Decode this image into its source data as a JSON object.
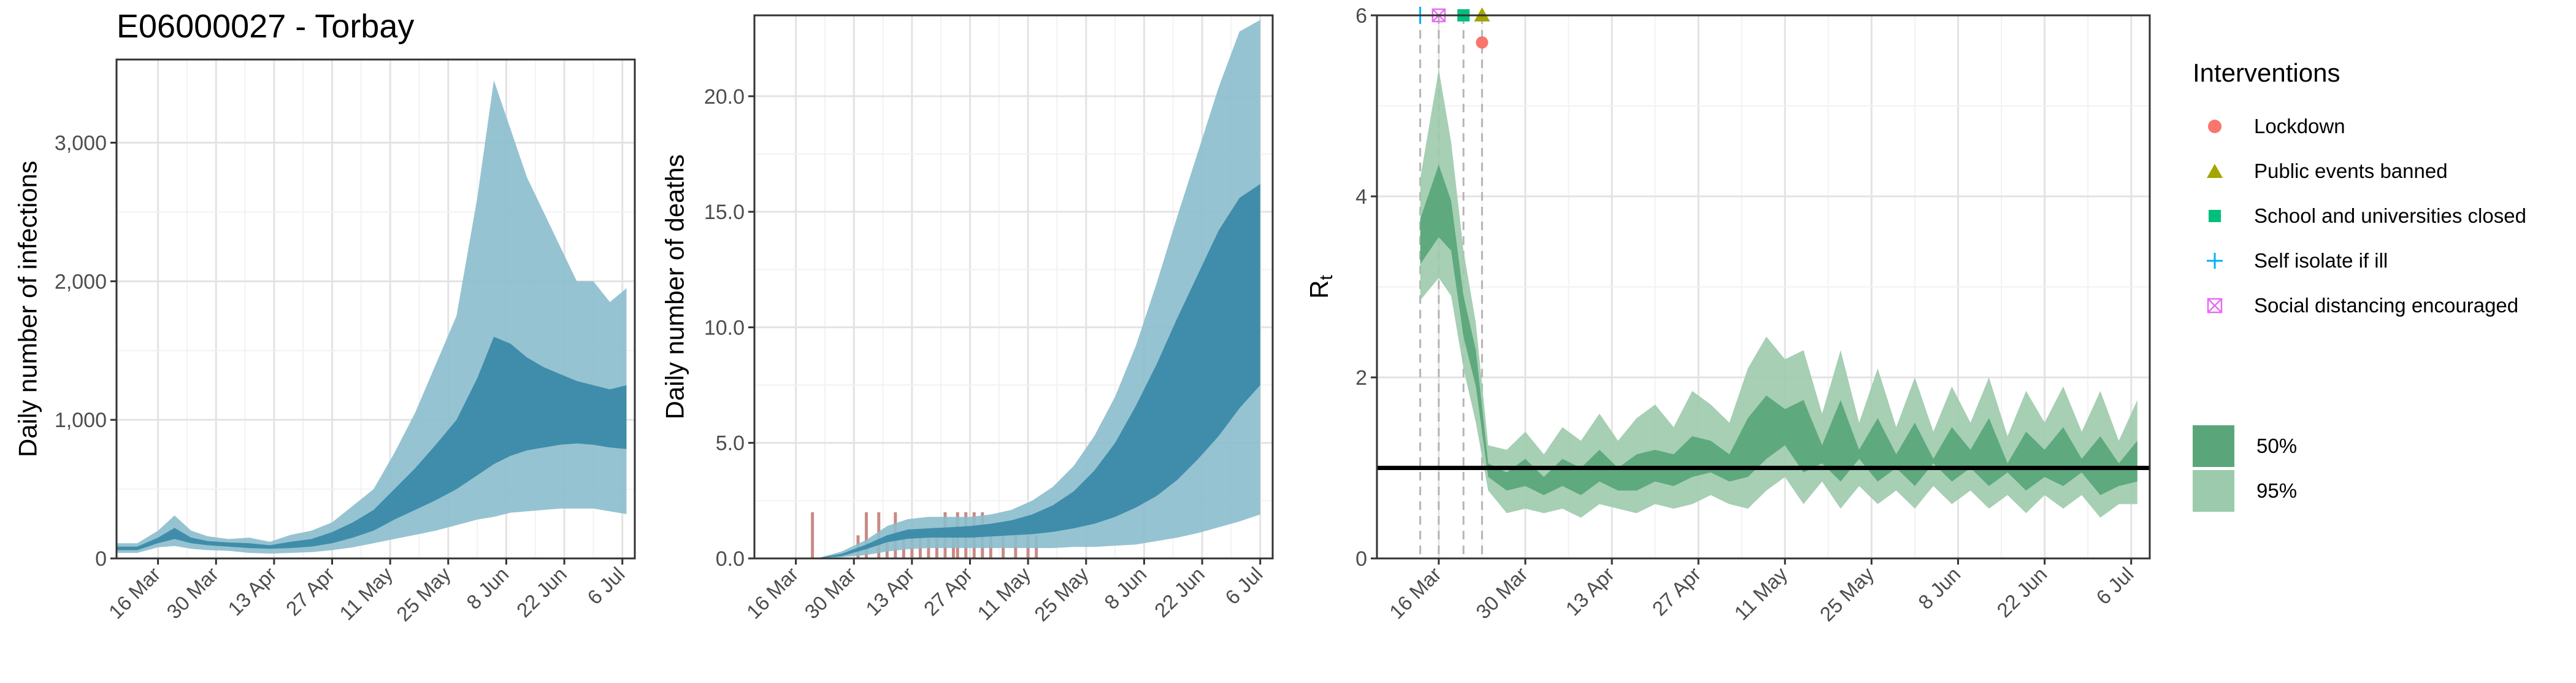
{
  "title": "E06000027 - Torbay",
  "x_tick_labels": [
    "16 Mar",
    "30 Mar",
    "13 Apr",
    "27 Apr",
    "11 May",
    "25 May",
    "8 Jun",
    "22 Jun",
    "6 Jul"
  ],
  "colors": {
    "infections_50": "#3a8aa8",
    "infections_95": "#8bbccc",
    "deaths_50": "#3a8aa8",
    "deaths_95": "#8bbccc",
    "observed_deaths": "#c98a86",
    "rt_50": "#5aa67a",
    "rt_95": "#9ccaac",
    "lockdown": "#F8766D",
    "public_events": "#A3A500",
    "schools": "#00BF7D",
    "self_isolate": "#00B0F6",
    "social_distancing": "#E76BF3"
  },
  "legend": {
    "title": "Interventions",
    "items": [
      {
        "label": "Lockdown",
        "shape": "circle",
        "color": "#F8766D"
      },
      {
        "label": "Public events banned",
        "shape": "triangle",
        "color": "#A3A500"
      },
      {
        "label": "School and universities closed",
        "shape": "square",
        "color": "#00BF7D"
      },
      {
        "label": "Self isolate if ill",
        "shape": "plus",
        "color": "#00B0F6"
      },
      {
        "label": "Social distancing encouraged",
        "shape": "boxed-x",
        "color": "#E76BF3"
      }
    ],
    "intervals": [
      {
        "label": "50%",
        "color": "#5aa67a"
      },
      {
        "label": "95%",
        "color": "#9ccaac"
      }
    ]
  },
  "chart_data": [
    {
      "type": "area",
      "ylabel": "Daily number of infections",
      "ylim": [
        0,
        3600
      ],
      "y_ticks": [
        0,
        1000,
        2000,
        3000
      ],
      "y_tick_labels": [
        "0",
        "1,000",
        "2,000",
        "3,000"
      ],
      "x_start": "2020-03-06",
      "x_end": "2020-07-09",
      "grid": true,
      "series": [
        {
          "name": "95%",
          "x": [
            "2020-03-06",
            "2020-03-11",
            "2020-03-16",
            "2020-03-20",
            "2020-03-24",
            "2020-03-28",
            "2020-04-02",
            "2020-04-07",
            "2020-04-12",
            "2020-04-17",
            "2020-04-22",
            "2020-04-27",
            "2020-05-02",
            "2020-05-07",
            "2020-05-12",
            "2020-05-17",
            "2020-05-22",
            "2020-05-27",
            "2020-06-01",
            "2020-06-05",
            "2020-06-09",
            "2020-06-13",
            "2020-06-17",
            "2020-06-21",
            "2020-06-25",
            "2020-06-29",
            "2020-07-03",
            "2020-07-07"
          ],
          "low": [
            40,
            40,
            80,
            90,
            70,
            60,
            55,
            40,
            35,
            40,
            45,
            60,
            80,
            110,
            140,
            170,
            200,
            240,
            280,
            300,
            330,
            340,
            350,
            360,
            360,
            360,
            340,
            320
          ],
          "high": [
            110,
            110,
            200,
            310,
            200,
            160,
            140,
            150,
            120,
            170,
            200,
            260,
            380,
            500,
            760,
            1050,
            1400,
            1750,
            2600,
            3450,
            3100,
            2750,
            2500,
            2250,
            2000,
            2000,
            1850,
            1950
          ]
        },
        {
          "name": "50%",
          "x": [
            "2020-03-06",
            "2020-03-11",
            "2020-03-16",
            "2020-03-20",
            "2020-03-24",
            "2020-03-28",
            "2020-04-02",
            "2020-04-07",
            "2020-04-12",
            "2020-04-17",
            "2020-04-22",
            "2020-04-27",
            "2020-05-02",
            "2020-05-07",
            "2020-05-12",
            "2020-05-17",
            "2020-05-22",
            "2020-05-27",
            "2020-06-01",
            "2020-06-05",
            "2020-06-09",
            "2020-06-13",
            "2020-06-17",
            "2020-06-21",
            "2020-06-25",
            "2020-06-29",
            "2020-07-03",
            "2020-07-07"
          ],
          "low": [
            60,
            60,
            110,
            140,
            110,
            95,
            85,
            75,
            70,
            75,
            85,
            110,
            150,
            200,
            280,
            350,
            420,
            500,
            600,
            680,
            740,
            780,
            800,
            820,
            830,
            820,
            800,
            790
          ],
          "high": [
            85,
            85,
            150,
            220,
            150,
            125,
            115,
            110,
            95,
            120,
            140,
            190,
            260,
            350,
            500,
            650,
            820,
            1000,
            1300,
            1600,
            1550,
            1450,
            1380,
            1330,
            1280,
            1250,
            1220,
            1250
          ]
        }
      ]
    },
    {
      "type": "area",
      "ylabel": "Daily number of deaths",
      "ylim": [
        0,
        23.5
      ],
      "y_ticks": [
        0,
        5,
        10,
        15,
        20
      ],
      "y_tick_labels": [
        "0.0",
        "5.0",
        "10.0",
        "15.0",
        "20.0"
      ],
      "x_start": "2020-03-06",
      "x_end": "2020-07-09",
      "grid": true,
      "series": [
        {
          "name": "95%",
          "x": [
            "2020-03-22",
            "2020-03-27",
            "2020-04-02",
            "2020-04-07",
            "2020-04-12",
            "2020-04-17",
            "2020-04-22",
            "2020-04-27",
            "2020-05-02",
            "2020-05-07",
            "2020-05-12",
            "2020-05-17",
            "2020-05-22",
            "2020-05-27",
            "2020-06-01",
            "2020-06-06",
            "2020-06-11",
            "2020-06-16",
            "2020-06-21",
            "2020-06-26",
            "2020-07-01",
            "2020-07-06"
          ],
          "low": [
            0,
            0.05,
            0.15,
            0.3,
            0.4,
            0.45,
            0.45,
            0.45,
            0.45,
            0.45,
            0.45,
            0.45,
            0.5,
            0.5,
            0.55,
            0.6,
            0.75,
            0.9,
            1.1,
            1.35,
            1.6,
            1.9
          ],
          "high": [
            0.05,
            0.3,
            0.8,
            1.4,
            1.7,
            1.8,
            1.8,
            1.8,
            1.9,
            2.1,
            2.5,
            3.1,
            4.0,
            5.3,
            7.0,
            9.2,
            11.9,
            14.8,
            17.6,
            20.4,
            22.8,
            23.3
          ]
        },
        {
          "name": "50%",
          "x": [
            "2020-03-22",
            "2020-03-27",
            "2020-04-02",
            "2020-04-07",
            "2020-04-12",
            "2020-04-17",
            "2020-04-22",
            "2020-04-27",
            "2020-05-02",
            "2020-05-07",
            "2020-05-12",
            "2020-05-17",
            "2020-05-22",
            "2020-05-27",
            "2020-06-01",
            "2020-06-06",
            "2020-06-11",
            "2020-06-16",
            "2020-06-21",
            "2020-06-26",
            "2020-07-01",
            "2020-07-06"
          ],
          "low": [
            0.02,
            0.1,
            0.4,
            0.7,
            0.85,
            0.9,
            0.9,
            0.9,
            0.95,
            1.0,
            1.05,
            1.15,
            1.3,
            1.5,
            1.8,
            2.2,
            2.7,
            3.4,
            4.3,
            5.3,
            6.5,
            7.5
          ],
          "high": [
            0.04,
            0.2,
            0.6,
            1.0,
            1.25,
            1.3,
            1.35,
            1.4,
            1.5,
            1.65,
            1.9,
            2.3,
            2.9,
            3.8,
            5.0,
            6.6,
            8.4,
            10.4,
            12.3,
            14.2,
            15.6,
            16.2
          ]
        },
        {
          "name": "observed",
          "type": "bar",
          "x": [
            "2020-03-20",
            "2020-03-31",
            "2020-04-02",
            "2020-04-05",
            "2020-04-07",
            "2020-04-09",
            "2020-04-11",
            "2020-04-13",
            "2020-04-15",
            "2020-04-17",
            "2020-04-19",
            "2020-04-21",
            "2020-04-23",
            "2020-04-24",
            "2020-04-26",
            "2020-04-28",
            "2020-04-30",
            "2020-05-02",
            "2020-05-05",
            "2020-05-08",
            "2020-05-11",
            "2020-05-13"
          ],
          "values": [
            2,
            1,
            2,
            2,
            1,
            2,
            1,
            1,
            1,
            1,
            1,
            2,
            1,
            2,
            2,
            2,
            2,
            1,
            1,
            1,
            1,
            1
          ]
        }
      ]
    },
    {
      "type": "area",
      "ylabel": "R",
      "ylabel_subscript": "t",
      "ylim": [
        0,
        6
      ],
      "y_ticks": [
        0,
        2,
        4,
        6
      ],
      "y_tick_labels": [
        "0",
        "2",
        "4",
        "6"
      ],
      "x_start": "2020-03-06",
      "x_end": "2020-07-09",
      "grid": true,
      "reference_line": 1,
      "interventions": [
        {
          "name": "Self isolate if ill",
          "date": "2020-03-13",
          "y": 6.0
        },
        {
          "name": "Social distancing encouraged",
          "date": "2020-03-16",
          "y": 6.0
        },
        {
          "name": "School and universities closed",
          "date": "2020-03-20",
          "y": 6.0
        },
        {
          "name": "Public events banned",
          "date": "2020-03-23",
          "y": 6.0
        },
        {
          "name": "Lockdown",
          "date": "2020-03-23",
          "y": 5.7
        }
      ],
      "series": [
        {
          "name": "95%",
          "x": [
            "2020-03-13",
            "2020-03-16",
            "2020-03-18",
            "2020-03-20",
            "2020-03-22",
            "2020-03-24",
            "2020-03-27",
            "2020-03-30",
            "2020-04-02",
            "2020-04-05",
            "2020-04-08",
            "2020-04-11",
            "2020-04-14",
            "2020-04-17",
            "2020-04-20",
            "2020-04-23",
            "2020-04-26",
            "2020-04-29",
            "2020-05-02",
            "2020-05-05",
            "2020-05-08",
            "2020-05-11",
            "2020-05-14",
            "2020-05-17",
            "2020-05-20",
            "2020-05-23",
            "2020-05-26",
            "2020-05-29",
            "2020-06-01",
            "2020-06-04",
            "2020-06-07",
            "2020-06-10",
            "2020-06-13",
            "2020-06-16",
            "2020-06-19",
            "2020-06-22",
            "2020-06-25",
            "2020-06-28",
            "2020-07-01",
            "2020-07-04",
            "2020-07-07"
          ],
          "low": [
            2.85,
            3.1,
            2.9,
            2.1,
            1.5,
            0.75,
            0.5,
            0.55,
            0.5,
            0.55,
            0.45,
            0.6,
            0.55,
            0.5,
            0.6,
            0.55,
            0.6,
            0.7,
            0.6,
            0.55,
            0.75,
            0.9,
            0.6,
            0.85,
            0.55,
            0.8,
            0.6,
            0.75,
            0.55,
            0.8,
            0.6,
            0.75,
            0.55,
            0.7,
            0.5,
            0.7,
            0.55,
            0.7,
            0.45,
            0.6,
            0.6
          ],
          "high": [
            4.2,
            5.4,
            4.6,
            3.4,
            2.6,
            1.25,
            1.2,
            1.4,
            1.15,
            1.45,
            1.3,
            1.6,
            1.3,
            1.55,
            1.7,
            1.45,
            1.85,
            1.7,
            1.5,
            2.1,
            2.45,
            2.2,
            2.3,
            1.6,
            2.3,
            1.5,
            2.1,
            1.45,
            2.0,
            1.4,
            1.9,
            1.5,
            2.0,
            1.35,
            1.85,
            1.5,
            1.9,
            1.4,
            1.85,
            1.3,
            1.75
          ]
        },
        {
          "name": "50%",
          "x": [
            "2020-03-13",
            "2020-03-16",
            "2020-03-18",
            "2020-03-20",
            "2020-03-22",
            "2020-03-24",
            "2020-03-27",
            "2020-03-30",
            "2020-04-02",
            "2020-04-05",
            "2020-04-08",
            "2020-04-11",
            "2020-04-14",
            "2020-04-17",
            "2020-04-20",
            "2020-04-23",
            "2020-04-26",
            "2020-04-29",
            "2020-05-02",
            "2020-05-05",
            "2020-05-08",
            "2020-05-11",
            "2020-05-14",
            "2020-05-17",
            "2020-05-20",
            "2020-05-23",
            "2020-05-26",
            "2020-05-29",
            "2020-06-01",
            "2020-06-04",
            "2020-06-07",
            "2020-06-10",
            "2020-06-13",
            "2020-06-16",
            "2020-06-19",
            "2020-06-22",
            "2020-06-25",
            "2020-06-28",
            "2020-07-01",
            "2020-07-04",
            "2020-07-07"
          ],
          "low": [
            3.25,
            3.55,
            3.4,
            2.45,
            1.9,
            0.9,
            0.75,
            0.8,
            0.7,
            0.8,
            0.7,
            0.85,
            0.75,
            0.75,
            0.85,
            0.8,
            0.9,
            0.95,
            0.85,
            0.9,
            1.1,
            1.25,
            0.95,
            1.05,
            0.85,
            1.1,
            0.85,
            1.0,
            0.8,
            1.05,
            0.85,
            1.0,
            0.8,
            0.95,
            0.75,
            0.9,
            0.8,
            0.95,
            0.7,
            0.8,
            0.85
          ],
          "high": [
            3.75,
            4.35,
            3.95,
            2.9,
            2.3,
            1.05,
            0.95,
            1.1,
            0.9,
            1.1,
            1.0,
            1.2,
            1.0,
            1.15,
            1.2,
            1.15,
            1.35,
            1.3,
            1.15,
            1.55,
            1.8,
            1.65,
            1.75,
            1.25,
            1.75,
            1.2,
            1.55,
            1.15,
            1.5,
            1.1,
            1.45,
            1.2,
            1.55,
            1.05,
            1.4,
            1.2,
            1.45,
            1.1,
            1.35,
            1.05,
            1.3
          ]
        }
      ]
    }
  ]
}
